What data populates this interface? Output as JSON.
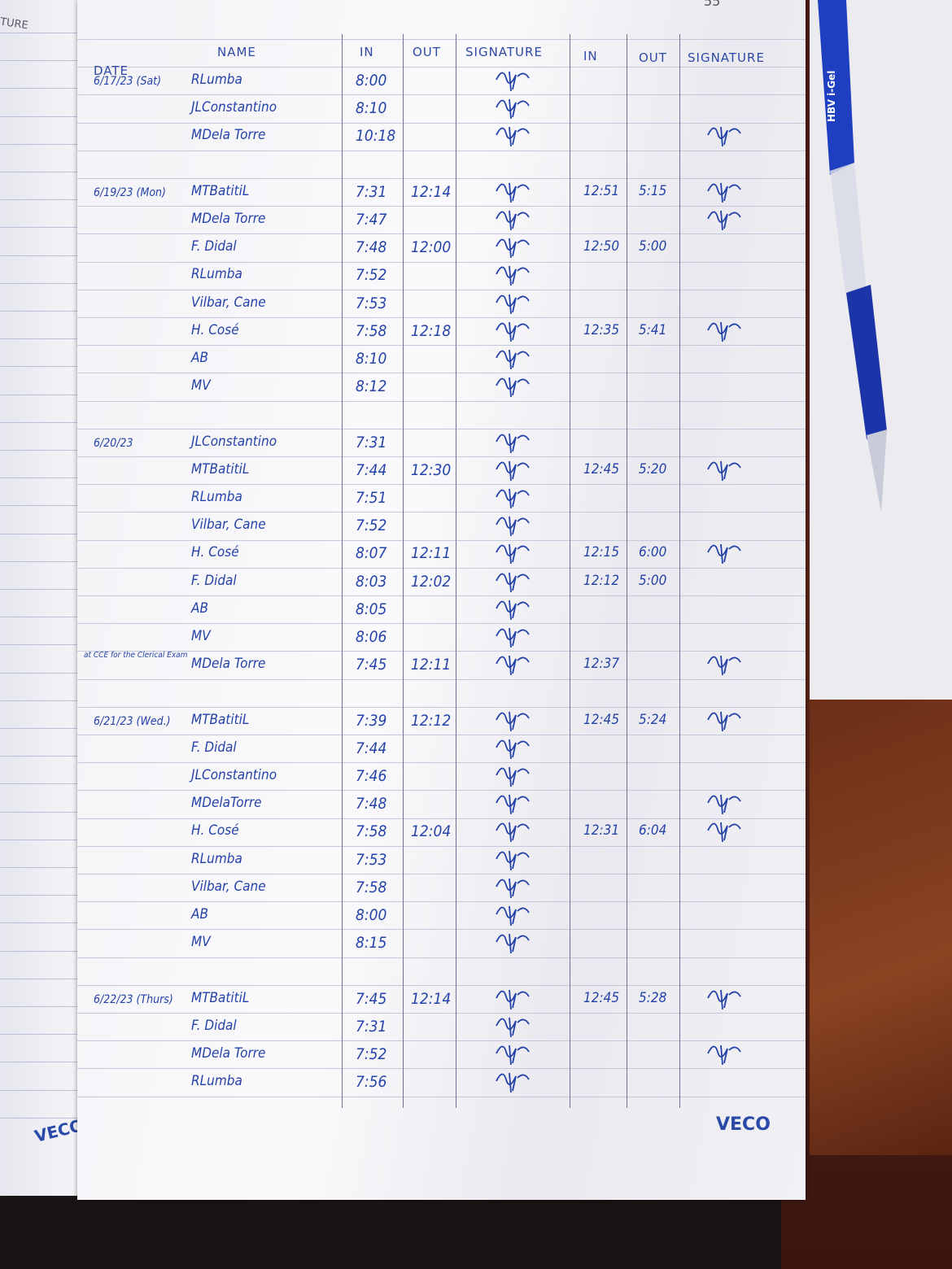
{
  "page_number": "55",
  "left_page": {
    "header_fragment": "TURE",
    "brand": "VECO"
  },
  "brand": "VECO",
  "pen_label": "HBV i-Gel",
  "headers": {
    "date": "DATE",
    "name": "NAME",
    "in_am": "IN",
    "out_am": "OUT",
    "signature_am": "SIGNATURE",
    "in_pm": "IN",
    "out_pm": "OUT",
    "signature_pm": "SIGNATURE"
  },
  "colors": {
    "ink": "#2442a8",
    "paper": "#f6f6f9",
    "rule": "#c3c8da"
  },
  "entries": [
    {
      "date": "6/17/23 (Sat)",
      "name": "RLumba",
      "in_am": "8:00",
      "out_am": "",
      "sig_am": true,
      "in_pm": "",
      "out_pm": "",
      "sig_pm": false
    },
    {
      "date": "",
      "name": "JLConstantino",
      "in_am": "8:10",
      "out_am": "",
      "sig_am": true,
      "in_pm": "",
      "out_pm": "",
      "sig_pm": false
    },
    {
      "date": "",
      "name": "MDela Torre",
      "in_am": "10:18",
      "out_am": "",
      "sig_am": true,
      "in_pm": "",
      "out_pm": "",
      "sig_pm": true
    },
    {
      "spacer": true
    },
    {
      "date": "6/19/23 (Mon)",
      "name": "MTBatitiL",
      "in_am": "7:31",
      "out_am": "12:14",
      "sig_am": true,
      "in_pm": "12:51",
      "out_pm": "5:15",
      "sig_pm": true
    },
    {
      "date": "",
      "name": "MDela Torre",
      "in_am": "7:47",
      "out_am": "",
      "sig_am": true,
      "in_pm": "",
      "out_pm": "",
      "sig_pm": true
    },
    {
      "date": "",
      "name": "F. Didal",
      "in_am": "7:48",
      "out_am": "12:00",
      "sig_am": true,
      "in_pm": "12:50",
      "out_pm": "5:00",
      "sig_pm": false
    },
    {
      "date": "",
      "name": "RLumba",
      "in_am": "7:52",
      "out_am": "",
      "sig_am": true,
      "in_pm": "",
      "out_pm": "",
      "sig_pm": false
    },
    {
      "date": "",
      "name": "Vilbar, Cane",
      "in_am": "7:53",
      "out_am": "",
      "sig_am": true,
      "in_pm": "",
      "out_pm": "",
      "sig_pm": false
    },
    {
      "date": "",
      "name": "H. Cosé",
      "in_am": "7:58",
      "out_am": "12:18",
      "sig_am": true,
      "in_pm": "12:35",
      "out_pm": "5:41",
      "sig_pm": true
    },
    {
      "date": "",
      "name": "AB",
      "in_am": "8:10",
      "out_am": "",
      "sig_am": true,
      "in_pm": "",
      "out_pm": "",
      "sig_pm": false
    },
    {
      "date": "",
      "name": "MV",
      "in_am": "8:12",
      "out_am": "",
      "sig_am": true,
      "in_pm": "",
      "out_pm": "",
      "sig_pm": false
    },
    {
      "spacer": true
    },
    {
      "date": "6/20/23",
      "name": "JLConstantino",
      "in_am": "7:31",
      "out_am": "",
      "sig_am": true,
      "in_pm": "",
      "out_pm": "",
      "sig_pm": false
    },
    {
      "date": "",
      "name": "MTBatitiL",
      "in_am": "7:44",
      "out_am": "12:30",
      "sig_am": true,
      "in_pm": "12:45",
      "out_pm": "5:20",
      "sig_pm": true
    },
    {
      "date": "",
      "name": "RLumba",
      "in_am": "7:51",
      "out_am": "",
      "sig_am": true,
      "in_pm": "",
      "out_pm": "",
      "sig_pm": false
    },
    {
      "date": "",
      "name": "Vilbar, Cane",
      "in_am": "7:52",
      "out_am": "",
      "sig_am": true,
      "in_pm": "",
      "out_pm": "",
      "sig_pm": false
    },
    {
      "date": "",
      "name": "H. Cosé",
      "in_am": "8:07",
      "out_am": "12:11",
      "sig_am": true,
      "in_pm": "12:15",
      "out_pm": "6:00",
      "sig_pm": true
    },
    {
      "date": "",
      "name": "F. Didal",
      "in_am": "8:03",
      "out_am": "12:02",
      "sig_am": true,
      "in_pm": "12:12",
      "out_pm": "5:00",
      "sig_pm": false
    },
    {
      "date": "",
      "name": "AB",
      "in_am": "8:05",
      "out_am": "",
      "sig_am": true,
      "in_pm": "",
      "out_pm": "",
      "sig_pm": false
    },
    {
      "date": "",
      "name": "MV",
      "in_am": "8:06",
      "out_am": "",
      "sig_am": true,
      "in_pm": "",
      "out_pm": "",
      "sig_pm": false
    },
    {
      "note": "at CCE for the Clerical Exam",
      "name": "MDela Torre",
      "in_am": "7:45",
      "out_am": "12:11",
      "sig_am": true,
      "in_pm": "12:37",
      "out_pm": "",
      "sig_pm": true
    },
    {
      "spacer": true
    },
    {
      "date": "6/21/23 (Wed.)",
      "name": "MTBatitiL",
      "in_am": "7:39",
      "out_am": "12:12",
      "sig_am": true,
      "in_pm": "12:45",
      "out_pm": "5:24",
      "sig_pm": true
    },
    {
      "date": "",
      "name": "F. Didal",
      "in_am": "7:44",
      "out_am": "",
      "sig_am": true,
      "in_pm": "",
      "out_pm": "",
      "sig_pm": false
    },
    {
      "date": "",
      "name": "JLConstantino",
      "in_am": "7:46",
      "out_am": "",
      "sig_am": true,
      "in_pm": "",
      "out_pm": "",
      "sig_pm": false
    },
    {
      "date": "",
      "name": "MDelaTorre",
      "in_am": "7:48",
      "out_am": "",
      "sig_am": true,
      "in_pm": "",
      "out_pm": "",
      "sig_pm": true
    },
    {
      "date": "",
      "name": "H. Cosé",
      "in_am": "7:58",
      "out_am": "12:04",
      "sig_am": true,
      "in_pm": "12:31",
      "out_pm": "6:04",
      "sig_pm": true
    },
    {
      "date": "",
      "name": "RLumba",
      "in_am": "7:53",
      "out_am": "",
      "sig_am": true,
      "in_pm": "",
      "out_pm": "",
      "sig_pm": false
    },
    {
      "date": "",
      "name": "Vilbar, Cane",
      "in_am": "7:58",
      "out_am": "",
      "sig_am": true,
      "in_pm": "",
      "out_pm": "",
      "sig_pm": false
    },
    {
      "date": "",
      "name": "AB",
      "in_am": "8:00",
      "out_am": "",
      "sig_am": true,
      "in_pm": "",
      "out_pm": "",
      "sig_pm": false
    },
    {
      "date": "",
      "name": "MV",
      "in_am": "8:15",
      "out_am": "",
      "sig_am": true,
      "in_pm": "",
      "out_pm": "",
      "sig_pm": false
    },
    {
      "spacer": true
    },
    {
      "date": "6/22/23 (Thurs)",
      "name": "MTBatitiL",
      "in_am": "7:45",
      "out_am": "12:14",
      "sig_am": true,
      "in_pm": "12:45",
      "out_pm": "5:28",
      "sig_pm": true
    },
    {
      "date": "",
      "name": "F. Didal",
      "in_am": "7:31",
      "out_am": "",
      "sig_am": true,
      "in_pm": "",
      "out_pm": "",
      "sig_pm": false
    },
    {
      "date": "",
      "name": "MDela Torre",
      "in_am": "7:52",
      "out_am": "",
      "sig_am": true,
      "in_pm": "",
      "out_pm": "",
      "sig_pm": true
    },
    {
      "date": "",
      "name": "RLumba",
      "in_am": "7:56",
      "out_am": "",
      "sig_am": true,
      "in_pm": "",
      "out_pm": "",
      "sig_pm": false
    }
  ]
}
